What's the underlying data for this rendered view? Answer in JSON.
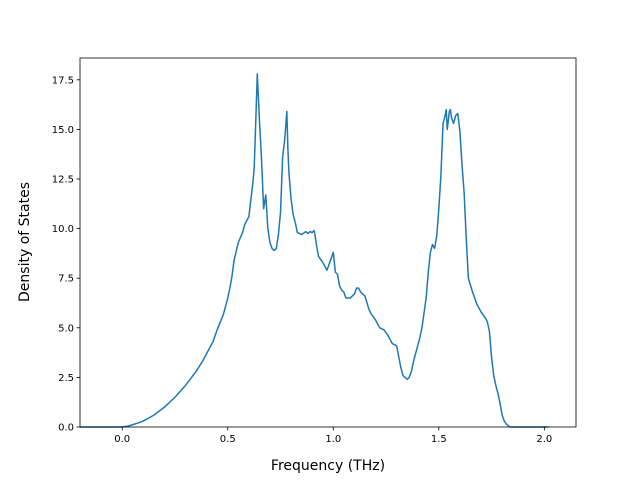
{
  "chart_data": {
    "type": "line",
    "title": "",
    "xlabel": "Frequency (THz)",
    "ylabel": "Density of States",
    "xlim": [
      -0.2,
      2.15
    ],
    "ylim": [
      0.0,
      18.6
    ],
    "xticks": [
      0.0,
      0.5,
      1.0,
      1.5,
      2.0
    ],
    "xtick_labels": [
      "0.0",
      "0.5",
      "1.0",
      "1.5",
      "2.0"
    ],
    "yticks": [
      0.0,
      2.5,
      5.0,
      7.5,
      10.0,
      12.5,
      15.0,
      17.5
    ],
    "ytick_labels": [
      "0.0",
      "2.5",
      "5.0",
      "7.5",
      "10.0",
      "12.5",
      "15.0",
      "17.5"
    ],
    "grid": false,
    "legend": "none",
    "series": [
      {
        "color": "#1f77b4",
        "x": [
          -0.2,
          -0.1,
          0.0,
          0.03,
          0.06,
          0.1,
          0.15,
          0.2,
          0.25,
          0.3,
          0.35,
          0.38,
          0.4,
          0.43,
          0.45,
          0.48,
          0.5,
          0.51,
          0.52,
          0.53,
          0.55,
          0.57,
          0.58,
          0.6,
          0.61,
          0.62,
          0.625,
          0.63,
          0.64,
          0.65,
          0.66,
          0.67,
          0.68,
          0.69,
          0.7,
          0.71,
          0.72,
          0.73,
          0.74,
          0.75,
          0.76,
          0.77,
          0.78,
          0.785,
          0.79,
          0.8,
          0.81,
          0.82,
          0.83,
          0.85,
          0.87,
          0.88,
          0.89,
          0.9,
          0.91,
          0.92,
          0.93,
          0.95,
          0.97,
          0.98,
          0.99,
          1.0,
          1.01,
          1.02,
          1.03,
          1.04,
          1.05,
          1.06,
          1.08,
          1.1,
          1.11,
          1.12,
          1.13,
          1.14,
          1.15,
          1.17,
          1.18,
          1.2,
          1.22,
          1.24,
          1.26,
          1.28,
          1.3,
          1.32,
          1.33,
          1.35,
          1.36,
          1.37,
          1.38,
          1.4,
          1.41,
          1.42,
          1.44,
          1.45,
          1.46,
          1.47,
          1.48,
          1.49,
          1.5,
          1.51,
          1.52,
          1.53,
          1.535,
          1.54,
          1.55,
          1.555,
          1.56,
          1.57,
          1.58,
          1.59,
          1.6,
          1.61,
          1.62,
          1.63,
          1.64,
          1.66,
          1.68,
          1.7,
          1.72,
          1.73,
          1.74,
          1.75,
          1.76,
          1.77,
          1.78,
          1.79,
          1.8,
          1.81,
          1.82,
          1.83,
          1.84,
          1.86,
          1.9,
          2.0,
          2.02
        ],
        "y": [
          0.0,
          0.0,
          0.0,
          0.05,
          0.15,
          0.3,
          0.6,
          1.0,
          1.5,
          2.1,
          2.8,
          3.3,
          3.7,
          4.3,
          4.9,
          5.7,
          6.5,
          7.0,
          7.6,
          8.4,
          9.3,
          9.8,
          10.2,
          10.6,
          11.5,
          12.4,
          13.0,
          14.5,
          17.8,
          15.5,
          13.5,
          11.0,
          11.7,
          10.0,
          9.3,
          9.0,
          8.9,
          9.0,
          9.7,
          10.8,
          13.6,
          14.5,
          15.9,
          14.0,
          12.8,
          11.5,
          10.7,
          10.3,
          9.8,
          9.7,
          9.85,
          9.75,
          9.85,
          9.8,
          9.9,
          9.2,
          8.6,
          8.3,
          7.9,
          8.2,
          8.5,
          8.8,
          7.8,
          7.7,
          7.1,
          6.9,
          6.8,
          6.5,
          6.5,
          6.7,
          7.0,
          7.0,
          6.8,
          6.7,
          6.6,
          5.9,
          5.7,
          5.4,
          5.0,
          4.9,
          4.6,
          4.2,
          4.1,
          3.0,
          2.6,
          2.4,
          2.5,
          2.8,
          3.3,
          4.1,
          4.5,
          5.0,
          6.5,
          7.8,
          8.8,
          9.2,
          9.0,
          9.6,
          11.0,
          12.7,
          15.3,
          15.7,
          16.0,
          15.0,
          15.9,
          16.0,
          15.6,
          15.3,
          15.7,
          15.8,
          14.9,
          13.2,
          11.8,
          9.5,
          7.5,
          6.8,
          6.2,
          5.8,
          5.5,
          5.3,
          4.8,
          3.5,
          2.6,
          2.1,
          1.7,
          1.2,
          0.6,
          0.3,
          0.15,
          0.05,
          0.0,
          0.0,
          0.0,
          0.0,
          0.0
        ]
      }
    ]
  }
}
